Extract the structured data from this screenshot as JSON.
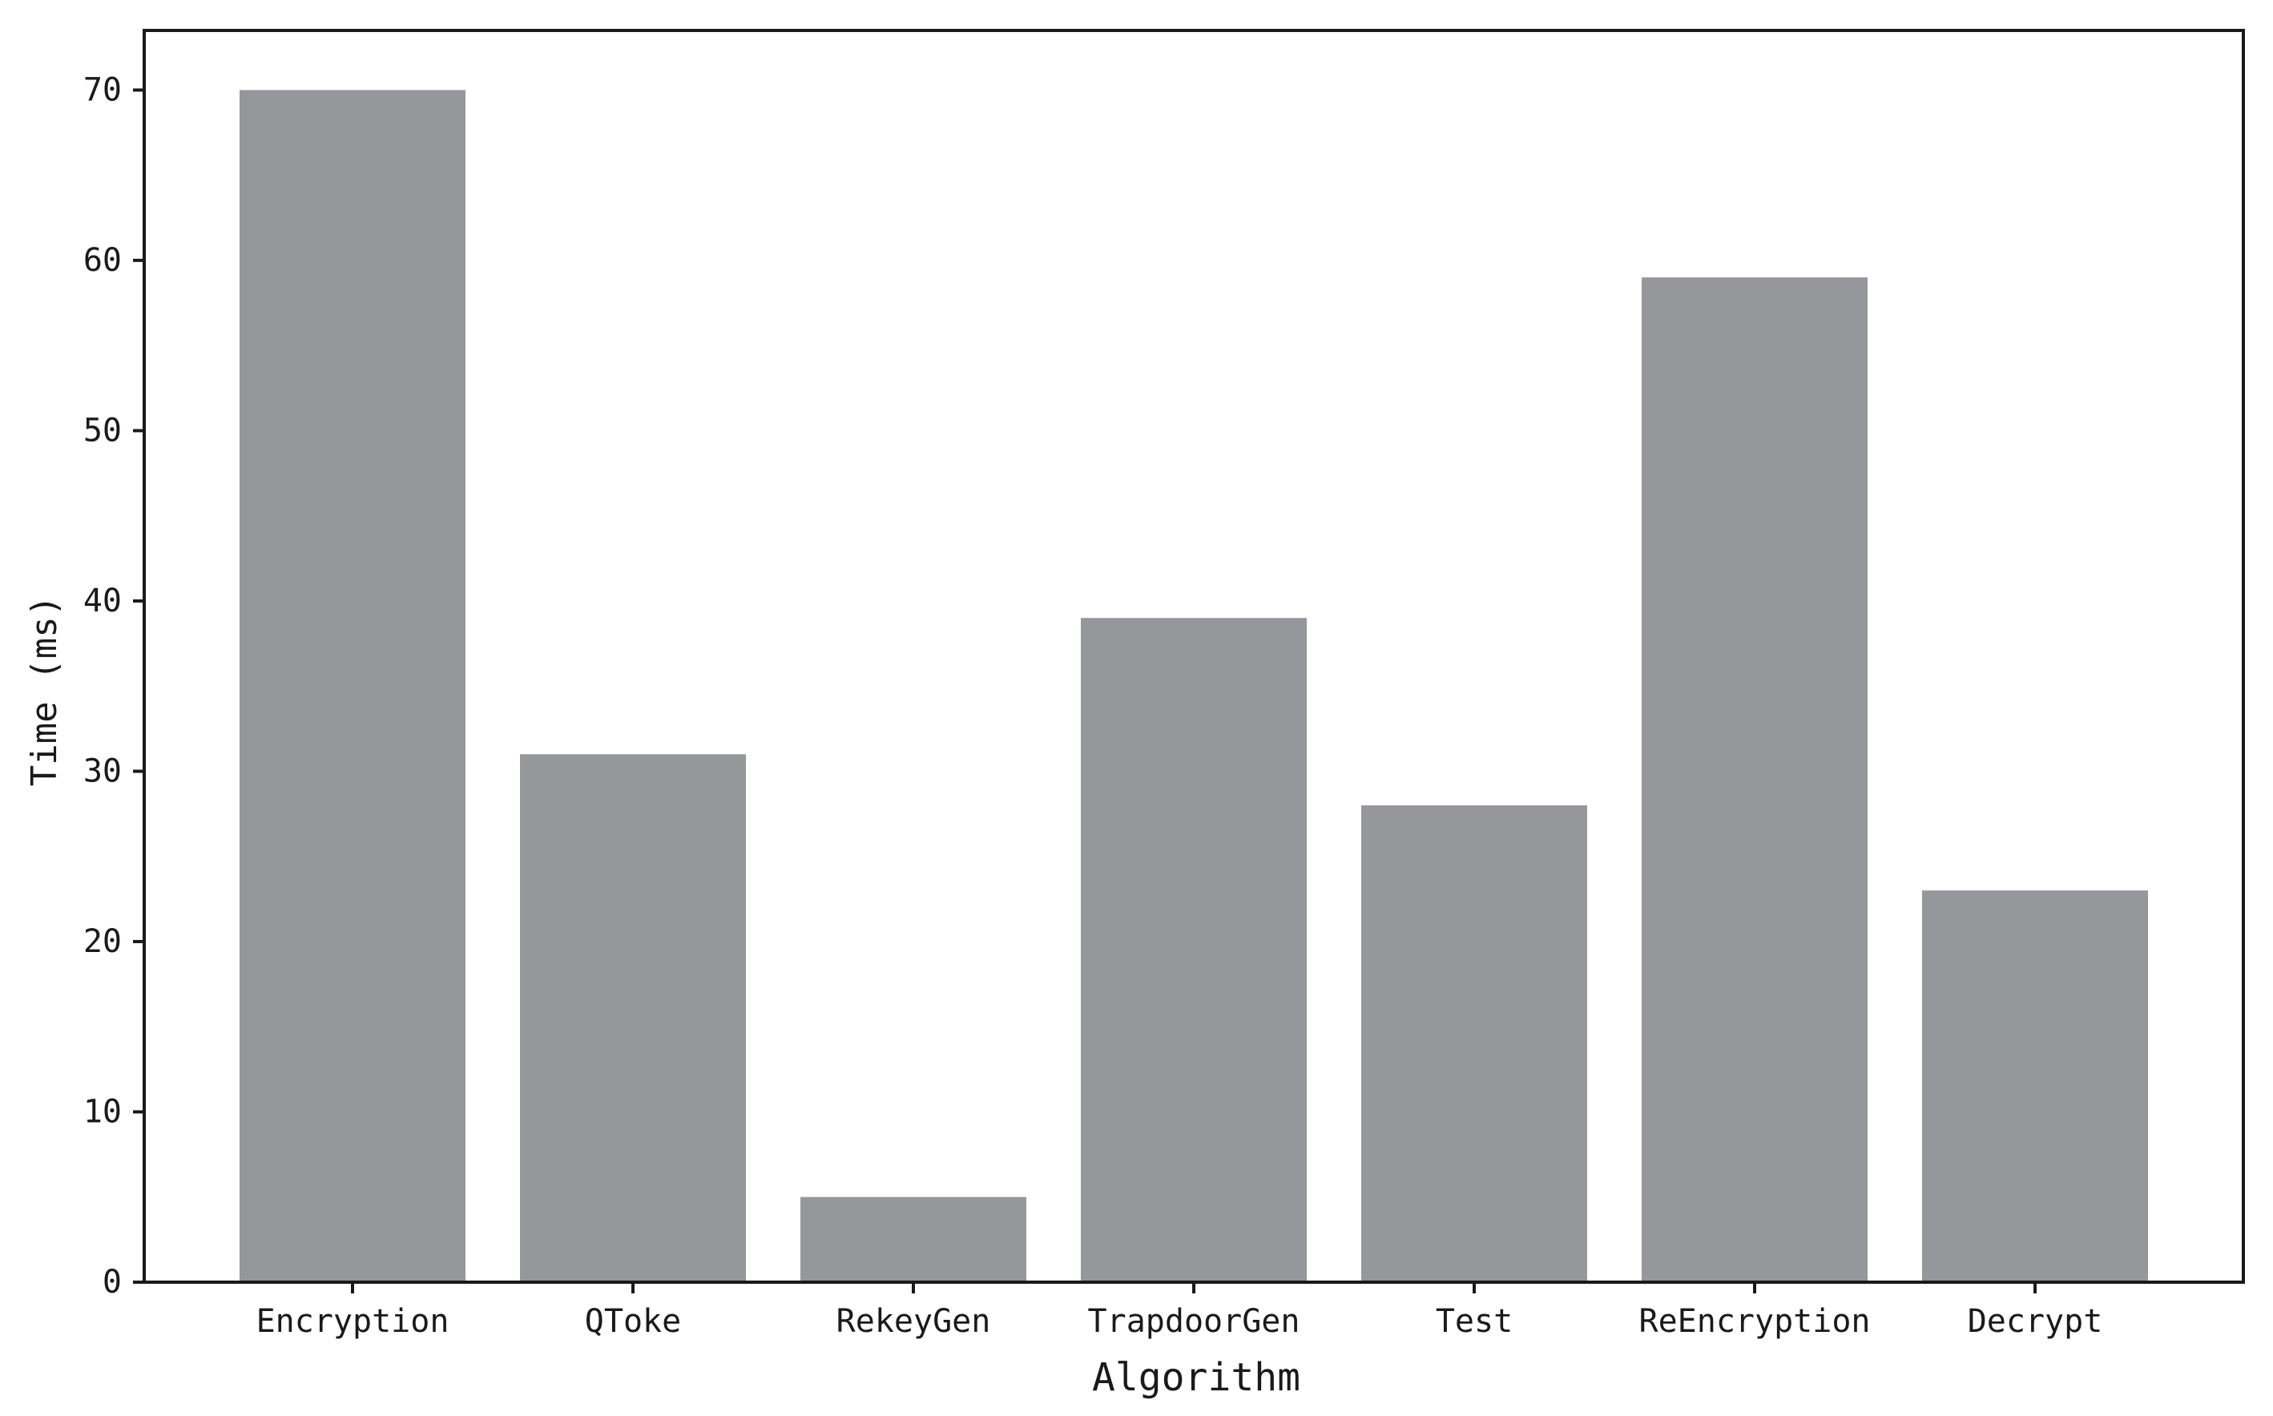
{
  "chart_data": {
    "type": "bar",
    "title": "",
    "xlabel": "Algorithm",
    "ylabel": "Time (ms)",
    "categories": [
      "Encryption",
      "QToke",
      "RekeyGen",
      "TrapdoorGen",
      "Test",
      "ReEncryption",
      "Decrypt"
    ],
    "values": [
      70,
      31,
      5,
      39,
      28,
      59,
      23
    ],
    "ylim": [
      0,
      73.5
    ],
    "yticks": [
      0,
      10,
      20,
      30,
      40,
      50,
      60,
      70
    ],
    "grid": false,
    "legend": "none",
    "bar_color": "#96979b",
    "axis_color": "#1a1a1a"
  }
}
